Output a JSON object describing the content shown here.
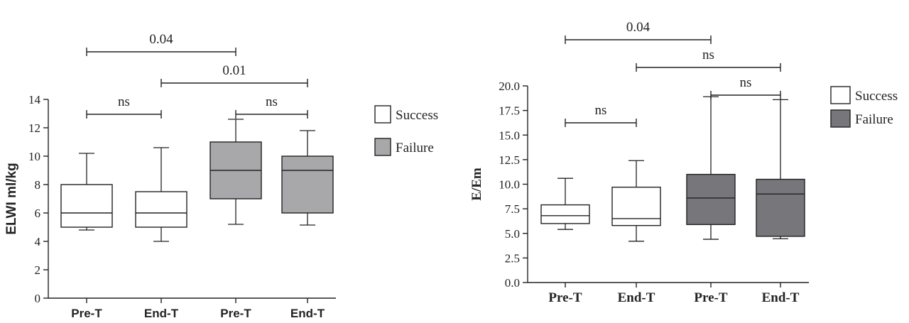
{
  "chart_data": [
    {
      "type": "boxplot",
      "ylabel": "ELWI ml/kg",
      "ylim": [
        0,
        14
      ],
      "yticks": [
        "0",
        "2",
        "4",
        "6",
        "8",
        "10",
        "12",
        "14"
      ],
      "categories": [
        "Pre-T",
        "End-T",
        "Pre-T",
        "End-T"
      ],
      "legend": {
        "position": "right",
        "entries": [
          {
            "label": "Success",
            "color": "#ffffff"
          },
          {
            "label": "Failure",
            "color": "#a8a8ab"
          }
        ]
      },
      "boxes": [
        {
          "category": "Pre-T",
          "group": "Success",
          "min": 4.8,
          "q1": 5.0,
          "median": 6.0,
          "q3": 8.0,
          "max": 10.2
        },
        {
          "category": "End-T",
          "group": "Success",
          "min": 4.0,
          "q1": 5.0,
          "median": 6.0,
          "q3": 7.5,
          "max": 10.6
        },
        {
          "category": "Pre-T",
          "group": "Failure",
          "min": 5.2,
          "q1": 7.0,
          "median": 9.0,
          "q3": 11.0,
          "max": 12.6
        },
        {
          "category": "End-T",
          "group": "Failure",
          "min": 5.15,
          "q1": 6.0,
          "median": 9.0,
          "q3": 10.0,
          "max": 11.8
        }
      ],
      "comparisons": [
        {
          "from": 0,
          "to": 1,
          "label": "ns",
          "level": 0
        },
        {
          "from": 2,
          "to": 3,
          "label": "ns",
          "level": 0
        },
        {
          "from": 1,
          "to": 3,
          "label": "0.01",
          "level": 1
        },
        {
          "from": 0,
          "to": 2,
          "label": "0.04",
          "level": 2
        }
      ]
    },
    {
      "type": "boxplot",
      "ylabel": "E/Em",
      "ylim": [
        0,
        20
      ],
      "yticks": [
        "0.0",
        "2.5",
        "5.0",
        "7.5",
        "10.0",
        "12.5",
        "15.0",
        "17.5",
        "20.0"
      ],
      "categories": [
        "Pre-T",
        "End-T",
        "Pre-T",
        "End-T"
      ],
      "legend": {
        "position": "right",
        "entries": [
          {
            "label": "Success",
            "color": "#ffffff"
          },
          {
            "label": "Failure",
            "color": "#77777b"
          }
        ]
      },
      "boxes": [
        {
          "category": "Pre-T",
          "group": "Success",
          "min": 5.4,
          "q1": 6.0,
          "median": 6.8,
          "q3": 7.9,
          "max": 10.6
        },
        {
          "category": "End-T",
          "group": "Success",
          "min": 4.2,
          "q1": 5.8,
          "median": 6.5,
          "q3": 9.7,
          "max": 12.4
        },
        {
          "category": "Pre-T",
          "group": "Failure",
          "min": 4.4,
          "q1": 5.9,
          "median": 8.6,
          "q3": 11.0,
          "max": 18.9
        },
        {
          "category": "End-T",
          "group": "Failure",
          "min": 4.45,
          "q1": 4.7,
          "median": 9.0,
          "q3": 10.5,
          "max": 18.6
        }
      ],
      "comparisons": [
        {
          "from": 0,
          "to": 1,
          "label": "ns",
          "level": 0
        },
        {
          "from": 2,
          "to": 3,
          "label": "ns",
          "level": 1
        },
        {
          "from": 1,
          "to": 3,
          "label": "ns",
          "level": 2
        },
        {
          "from": 0,
          "to": 2,
          "label": "0.04",
          "level": 3
        }
      ]
    }
  ]
}
